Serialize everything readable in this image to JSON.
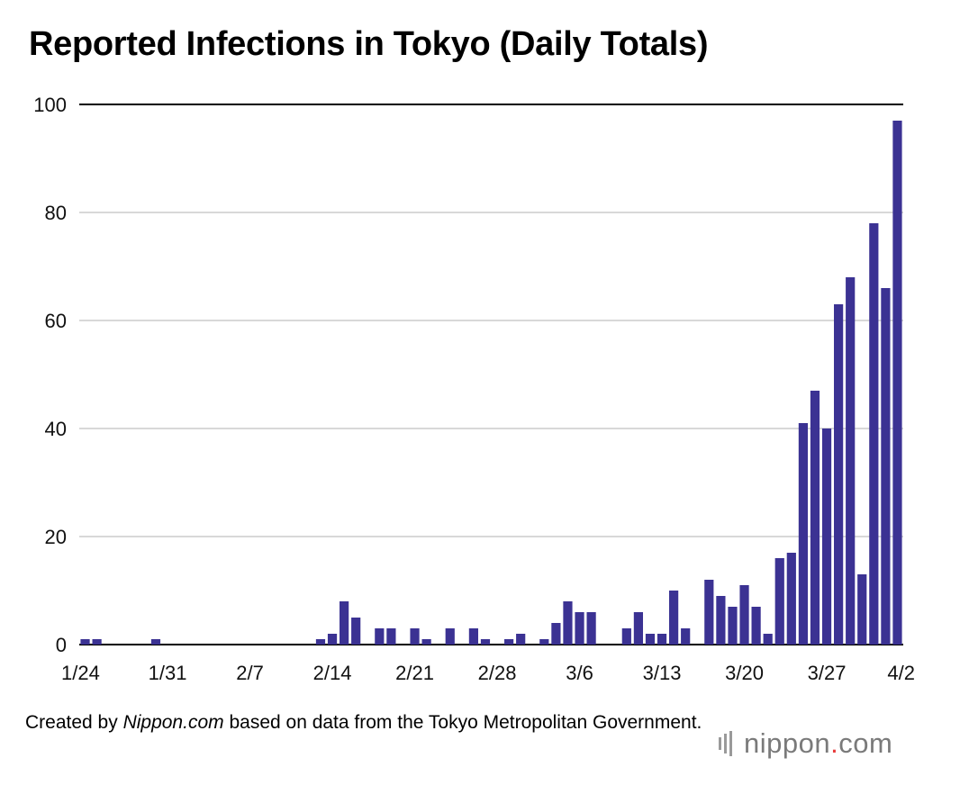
{
  "title": "Reported Infections in Tokyo (Daily Totals)",
  "credit": {
    "prefix": "Created by ",
    "source": "Nippon.com",
    "suffix": " based on data from the Tokyo Metropolitan Government."
  },
  "logo": {
    "name": "nippon",
    "dot": ".",
    "tld": "com"
  },
  "colors": {
    "bar": "#3b3293",
    "grid": "#cccccc",
    "top_line": "#000000",
    "baseline": "#000000"
  },
  "chart_data": {
    "type": "bar",
    "title": "Reported Infections in Tokyo (Daily Totals)",
    "xlabel": "",
    "ylabel": "",
    "ylim": [
      0,
      100
    ],
    "yticks": [
      0,
      20,
      40,
      60,
      80,
      100
    ],
    "grid": true,
    "x_tick_labels": [
      "1/24",
      "1/31",
      "2/7",
      "2/14",
      "2/21",
      "2/28",
      "3/6",
      "3/13",
      "3/20",
      "3/27",
      "4/2"
    ],
    "categories": [
      "1/24",
      "1/25",
      "1/26",
      "1/27",
      "1/28",
      "1/29",
      "1/30",
      "1/31",
      "2/1",
      "2/2",
      "2/3",
      "2/4",
      "2/5",
      "2/6",
      "2/7",
      "2/8",
      "2/9",
      "2/10",
      "2/11",
      "2/12",
      "2/13",
      "2/14",
      "2/15",
      "2/16",
      "2/17",
      "2/18",
      "2/19",
      "2/20",
      "2/21",
      "2/22",
      "2/23",
      "2/24",
      "2/25",
      "2/26",
      "2/27",
      "2/28",
      "2/29",
      "3/1",
      "3/2",
      "3/3",
      "3/4",
      "3/5",
      "3/6",
      "3/7",
      "3/8",
      "3/9",
      "3/10",
      "3/11",
      "3/12",
      "3/13",
      "3/14",
      "3/15",
      "3/16",
      "3/17",
      "3/18",
      "3/19",
      "3/20",
      "3/21",
      "3/22",
      "3/23",
      "3/24",
      "3/25",
      "3/26",
      "3/27",
      "3/28",
      "3/29",
      "3/30",
      "3/31",
      "4/1",
      "4/2"
    ],
    "values": [
      1,
      1,
      0,
      0,
      0,
      0,
      1,
      0,
      0,
      0,
      0,
      0,
      0,
      0,
      0,
      0,
      0,
      0,
      0,
      0,
      1,
      2,
      8,
      5,
      0,
      3,
      3,
      0,
      3,
      1,
      0,
      3,
      0,
      3,
      1,
      0,
      1,
      2,
      0,
      1,
      4,
      8,
      6,
      6,
      0,
      0,
      3,
      6,
      2,
      2,
      10,
      3,
      0,
      12,
      9,
      7,
      11,
      7,
      2,
      16,
      17,
      41,
      47,
      40,
      63,
      68,
      13,
      78,
      66,
      97
    ]
  }
}
